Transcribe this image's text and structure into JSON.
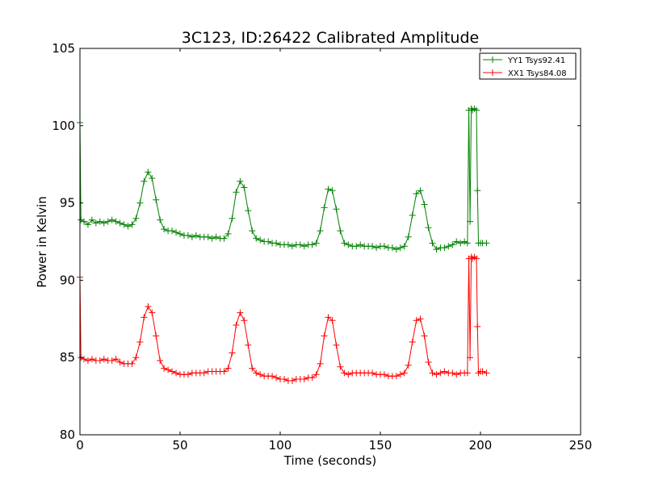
{
  "chart_data": {
    "type": "line",
    "title": "3C123, ID:26422 Calibrated Amplitude",
    "xlabel": "Time (seconds)",
    "ylabel": "Power in Kelvin",
    "xlim": [
      0,
      250
    ],
    "ylim": [
      80,
      105
    ],
    "xticks": [
      0,
      50,
      100,
      150,
      200,
      250
    ],
    "yticks": [
      80,
      85,
      90,
      95,
      100,
      105
    ],
    "grid": false,
    "legend_position": "top-right",
    "marker": "+",
    "series": [
      {
        "name": "YY1 Tsys92.41",
        "color": "#008000",
        "points": [
          [
            0,
            100.2
          ],
          [
            0.5,
            93.9
          ],
          [
            2,
            93.8
          ],
          [
            4,
            93.6
          ],
          [
            6,
            93.9
          ],
          [
            8,
            93.7
          ],
          [
            10,
            93.8
          ],
          [
            12,
            93.7
          ],
          [
            14,
            93.8
          ],
          [
            16,
            93.9
          ],
          [
            18,
            93.8
          ],
          [
            20,
            93.7
          ],
          [
            22,
            93.6
          ],
          [
            24,
            93.5
          ],
          [
            26,
            93.6
          ],
          [
            28,
            94.0
          ],
          [
            30,
            95.0
          ],
          [
            32,
            96.4
          ],
          [
            34,
            97.0
          ],
          [
            36,
            96.6
          ],
          [
            38,
            95.2
          ],
          [
            40,
            93.9
          ],
          [
            42,
            93.3
          ],
          [
            44,
            93.2
          ],
          [
            46,
            93.2
          ],
          [
            48,
            93.1
          ],
          [
            50,
            93.0
          ],
          [
            52,
            92.9
          ],
          [
            54,
            92.9
          ],
          [
            56,
            92.8
          ],
          [
            58,
            92.9
          ],
          [
            60,
            92.8
          ],
          [
            62,
            92.8
          ],
          [
            64,
            92.8
          ],
          [
            66,
            92.7
          ],
          [
            68,
            92.8
          ],
          [
            70,
            92.7
          ],
          [
            72,
            92.7
          ],
          [
            74,
            93.0
          ],
          [
            76,
            94.0
          ],
          [
            78,
            95.7
          ],
          [
            80,
            96.4
          ],
          [
            82,
            96.0
          ],
          [
            84,
            94.5
          ],
          [
            86,
            93.2
          ],
          [
            88,
            92.7
          ],
          [
            90,
            92.6
          ],
          [
            92,
            92.5
          ],
          [
            94,
            92.5
          ],
          [
            96,
            92.4
          ],
          [
            98,
            92.4
          ],
          [
            100,
            92.3
          ],
          [
            102,
            92.3
          ],
          [
            104,
            92.3
          ],
          [
            106,
            92.2
          ],
          [
            108,
            92.3
          ],
          [
            110,
            92.3
          ],
          [
            112,
            92.2
          ],
          [
            114,
            92.3
          ],
          [
            116,
            92.3
          ],
          [
            118,
            92.4
          ],
          [
            120,
            93.2
          ],
          [
            122,
            94.7
          ],
          [
            124,
            95.9
          ],
          [
            126,
            95.8
          ],
          [
            128,
            94.6
          ],
          [
            130,
            93.2
          ],
          [
            132,
            92.4
          ],
          [
            134,
            92.3
          ],
          [
            136,
            92.2
          ],
          [
            138,
            92.2
          ],
          [
            140,
            92.3
          ],
          [
            142,
            92.2
          ],
          [
            144,
            92.2
          ],
          [
            146,
            92.2
          ],
          [
            148,
            92.1
          ],
          [
            150,
            92.2
          ],
          [
            152,
            92.2
          ],
          [
            154,
            92.1
          ],
          [
            156,
            92.1
          ],
          [
            158,
            92.0
          ],
          [
            160,
            92.1
          ],
          [
            162,
            92.2
          ],
          [
            164,
            92.8
          ],
          [
            166,
            94.2
          ],
          [
            168,
            95.6
          ],
          [
            170,
            95.8
          ],
          [
            172,
            94.9
          ],
          [
            174,
            93.4
          ],
          [
            176,
            92.4
          ],
          [
            178,
            92.0
          ],
          [
            180,
            92.1
          ],
          [
            182,
            92.1
          ],
          [
            184,
            92.2
          ],
          [
            186,
            92.3
          ],
          [
            188,
            92.5
          ],
          [
            190,
            92.4
          ],
          [
            192,
            92.5
          ],
          [
            193.5,
            92.4
          ],
          [
            194.2,
            101.0
          ],
          [
            194.8,
            93.8
          ],
          [
            195.4,
            101.1
          ],
          [
            196,
            101.0
          ],
          [
            197,
            101.1
          ],
          [
            198,
            101.0
          ],
          [
            198.5,
            95.8
          ],
          [
            199,
            92.4
          ],
          [
            200,
            92.4
          ],
          [
            201,
            92.4
          ],
          [
            203,
            92.4
          ]
        ]
      },
      {
        "name": "XX1 Tsys84.08",
        "color": "#ff0000",
        "points": [
          [
            0,
            90.2
          ],
          [
            0.5,
            85.0
          ],
          [
            2,
            84.9
          ],
          [
            4,
            84.8
          ],
          [
            6,
            84.9
          ],
          [
            8,
            84.8
          ],
          [
            10,
            84.8
          ],
          [
            12,
            84.9
          ],
          [
            14,
            84.8
          ],
          [
            16,
            84.8
          ],
          [
            18,
            84.9
          ],
          [
            20,
            84.7
          ],
          [
            22,
            84.6
          ],
          [
            24,
            84.6
          ],
          [
            26,
            84.6
          ],
          [
            28,
            85.0
          ],
          [
            30,
            86.0
          ],
          [
            32,
            87.6
          ],
          [
            34,
            88.3
          ],
          [
            36,
            87.9
          ],
          [
            38,
            86.4
          ],
          [
            40,
            84.8
          ],
          [
            42,
            84.3
          ],
          [
            44,
            84.2
          ],
          [
            46,
            84.1
          ],
          [
            48,
            84.0
          ],
          [
            50,
            83.9
          ],
          [
            52,
            83.9
          ],
          [
            54,
            83.9
          ],
          [
            56,
            84.0
          ],
          [
            58,
            84.0
          ],
          [
            60,
            84.0
          ],
          [
            62,
            84.0
          ],
          [
            64,
            84.1
          ],
          [
            66,
            84.1
          ],
          [
            68,
            84.1
          ],
          [
            70,
            84.1
          ],
          [
            72,
            84.1
          ],
          [
            74,
            84.3
          ],
          [
            76,
            85.3
          ],
          [
            78,
            87.1
          ],
          [
            80,
            87.9
          ],
          [
            82,
            87.4
          ],
          [
            84,
            85.8
          ],
          [
            86,
            84.3
          ],
          [
            88,
            84.0
          ],
          [
            90,
            83.9
          ],
          [
            92,
            83.8
          ],
          [
            94,
            83.8
          ],
          [
            96,
            83.8
          ],
          [
            98,
            83.7
          ],
          [
            100,
            83.6
          ],
          [
            102,
            83.6
          ],
          [
            104,
            83.5
          ],
          [
            106,
            83.5
          ],
          [
            108,
            83.6
          ],
          [
            110,
            83.6
          ],
          [
            112,
            83.6
          ],
          [
            114,
            83.7
          ],
          [
            116,
            83.7
          ],
          [
            118,
            83.9
          ],
          [
            120,
            84.6
          ],
          [
            122,
            86.4
          ],
          [
            124,
            87.6
          ],
          [
            126,
            87.4
          ],
          [
            128,
            85.8
          ],
          [
            130,
            84.4
          ],
          [
            132,
            84.0
          ],
          [
            134,
            83.9
          ],
          [
            136,
            84.0
          ],
          [
            138,
            84.0
          ],
          [
            140,
            84.0
          ],
          [
            142,
            84.0
          ],
          [
            144,
            84.0
          ],
          [
            146,
            84.0
          ],
          [
            148,
            83.9
          ],
          [
            150,
            83.9
          ],
          [
            152,
            83.9
          ],
          [
            154,
            83.8
          ],
          [
            156,
            83.8
          ],
          [
            158,
            83.8
          ],
          [
            160,
            83.9
          ],
          [
            162,
            84.0
          ],
          [
            164,
            84.5
          ],
          [
            166,
            86.0
          ],
          [
            168,
            87.4
          ],
          [
            170,
            87.5
          ],
          [
            172,
            86.4
          ],
          [
            174,
            84.7
          ],
          [
            176,
            84.0
          ],
          [
            178,
            83.9
          ],
          [
            180,
            84.0
          ],
          [
            182,
            84.1
          ],
          [
            184,
            84.0
          ],
          [
            186,
            84.0
          ],
          [
            188,
            83.9
          ],
          [
            190,
            84.0
          ],
          [
            192,
            84.0
          ],
          [
            193.5,
            84.0
          ],
          [
            194.2,
            91.4
          ],
          [
            194.8,
            85.0
          ],
          [
            195.4,
            91.5
          ],
          [
            196,
            91.4
          ],
          [
            197,
            91.5
          ],
          [
            198,
            91.4
          ],
          [
            198.5,
            87.0
          ],
          [
            199,
            84.0
          ],
          [
            200,
            84.1
          ],
          [
            201,
            84.1
          ],
          [
            203,
            84.0
          ]
        ]
      }
    ]
  }
}
